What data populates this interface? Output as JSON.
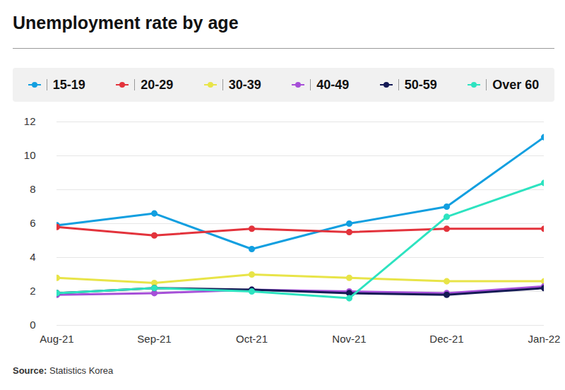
{
  "chart_data": {
    "type": "line",
    "title": "Unemployment rate by age",
    "source_label": "Source:",
    "source": "Statistics Korea",
    "categories": [
      "Aug-21",
      "Sep-21",
      "Oct-21",
      "Nov-21",
      "Dec-21",
      "Jan-22"
    ],
    "series": [
      {
        "name": "15-19",
        "color": "#129fe0",
        "values": [
          5.9,
          6.6,
          4.5,
          6.0,
          7.0,
          11.1
        ]
      },
      {
        "name": "20-29",
        "color": "#e3333c",
        "values": [
          5.8,
          5.3,
          5.7,
          5.5,
          5.7,
          5.7
        ]
      },
      {
        "name": "30-39",
        "color": "#e8e448",
        "values": [
          2.8,
          2.5,
          3.0,
          2.8,
          2.6,
          2.6
        ]
      },
      {
        "name": "40-49",
        "color": "#a64fd8",
        "values": [
          1.8,
          1.9,
          2.1,
          2.0,
          1.9,
          2.3
        ]
      },
      {
        "name": "50-59",
        "color": "#141a55",
        "values": [
          1.9,
          2.2,
          2.1,
          1.9,
          1.8,
          2.2
        ]
      },
      {
        "name": "Over 60",
        "color": "#2de3c0",
        "values": [
          1.9,
          2.2,
          2.0,
          1.6,
          6.4,
          8.4
        ]
      }
    ],
    "ylim": [
      0,
      12
    ],
    "yticks": [
      0,
      2,
      4,
      6,
      8,
      10,
      12
    ],
    "grid": true,
    "legend": "top",
    "marker": "circle"
  }
}
